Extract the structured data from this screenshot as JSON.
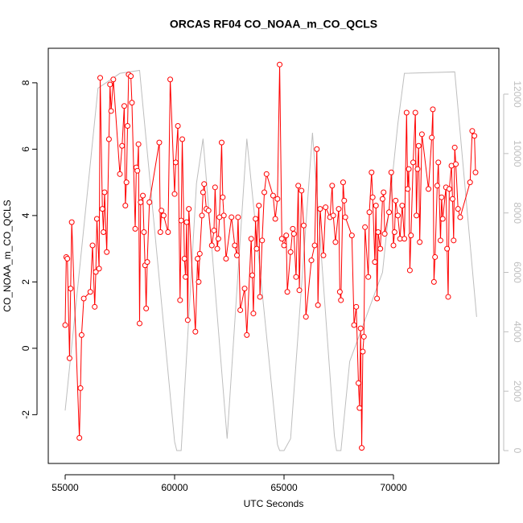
{
  "chart_data": {
    "type": "line",
    "title": "ORCAS RF04 CO_NOAA_m_CO_QCLS",
    "x_label": "UTC Seconds",
    "y_label": "CO_NOAA_m_CO_QCLS",
    "xlim": [
      54228,
      74816
    ],
    "ylim": [
      -3.47,
      9.04
    ],
    "y2lim": [
      -433,
      13544
    ],
    "xticks": [
      55000,
      60000,
      65000,
      70000
    ],
    "yticks": [
      -2,
      0,
      2,
      4,
      6,
      8
    ],
    "y2ticks": [
      0,
      2000,
      4000,
      6000,
      8000,
      10000,
      12000
    ],
    "series": [
      {
        "color": "#bebebe",
        "axis": "y2",
        "markers": false,
        "x": [
          55000,
          56500,
          57500,
          58400,
          60000,
          60100,
          60300,
          61000,
          61300,
          62400,
          63300,
          64700,
          64800,
          65000,
          65300,
          66300,
          67300,
          67400,
          67600,
          68000,
          69500,
          70200,
          70500,
          72800,
          73800
        ],
        "values": [
          1350,
          12200,
          12700,
          12800,
          300,
          0,
          0,
          9000,
          10500,
          400,
          10500,
          200,
          0,
          0,
          400,
          10700,
          500,
          0,
          0,
          3000,
          6000,
          11000,
          12700,
          12750,
          4500
        ]
      },
      {
        "color": "#ff0000",
        "markers": true,
        "x": [
          55000,
          55050,
          55100,
          55200,
          55250,
          55300,
          55650,
          55700,
          55750,
          55850,
          56150,
          56250,
          56350,
          56400,
          56450,
          56550,
          56600,
          56700,
          56750,
          56800,
          56900,
          57000,
          57050,
          57100,
          57200,
          57500,
          57600,
          57700,
          57750,
          57800,
          57850,
          57900,
          58000,
          58050,
          58200,
          58250,
          58300,
          58350,
          58400,
          58450,
          58550,
          58600,
          58650,
          58700,
          58750,
          58850,
          59300,
          59350,
          59400,
          59500,
          59700,
          59800,
          60000,
          60050,
          60150,
          60250,
          60300,
          60350,
          60450,
          60500,
          60550,
          60600,
          60650,
          60950,
          61050,
          61100,
          61150,
          61250,
          61300,
          61350,
          61450,
          61550,
          61700,
          61800,
          61850,
          61950,
          62000,
          62050,
          62150,
          62200,
          62250,
          62350,
          62600,
          62750,
          62850,
          62900,
          63000,
          63200,
          63300,
          63500,
          63550,
          63600,
          63700,
          63750,
          63850,
          63900,
          64000,
          64100,
          64200,
          64500,
          64600,
          64700,
          64800,
          64900,
          65000,
          65100,
          65150,
          65300,
          65400,
          65450,
          65550,
          65650,
          65700,
          65800,
          65900,
          66000,
          66250,
          66400,
          66500,
          66550,
          66650,
          66800,
          66900,
          67100,
          67200,
          67250,
          67350,
          67500,
          67550,
          67600,
          67700,
          67750,
          67800,
          68100,
          68200,
          68300,
          68400,
          68450,
          68500,
          68550,
          68600,
          68650,
          68700,
          68850,
          68900,
          69000,
          69050,
          69150,
          69200,
          69250,
          69300,
          69400,
          69500,
          69550,
          69600,
          69800,
          69900,
          70000,
          70050,
          70100,
          70200,
          70300,
          70400,
          70500,
          70600,
          70650,
          70700,
          70750,
          70800,
          70900,
          71000,
          71050,
          71100,
          71150,
          71200,
          71300,
          71600,
          71750,
          71800,
          71850,
          71900,
          72000,
          72050,
          72150,
          72200,
          72250,
          72400,
          72450,
          72500,
          72550,
          72650,
          72700,
          72750,
          72800,
          72850,
          72950,
          73050,
          73500,
          73600,
          73700,
          73750
        ],
        "values": [
          0.7,
          2.75,
          2.7,
          -0.3,
          1.8,
          3.8,
          -2.7,
          -1.2,
          0.4,
          1.5,
          1.7,
          3.1,
          1.25,
          2.3,
          3.9,
          2.4,
          8.15,
          4.2,
          3.5,
          4.7,
          2.9,
          6.3,
          7.95,
          7.15,
          8.1,
          5.25,
          6.1,
          7.3,
          4.3,
          5.0,
          6.7,
          8.25,
          8.2,
          7.4,
          3.6,
          5.45,
          5.35,
          6.15,
          0.75,
          4.4,
          4.6,
          3.5,
          2.5,
          1.2,
          2.6,
          4.4,
          6.2,
          3.5,
          4.15,
          4.0,
          3.5,
          8.1,
          4.65,
          5.6,
          6.7,
          1.45,
          3.85,
          6.3,
          2.7,
          2.15,
          3.8,
          0.85,
          4.2,
          0.5,
          2.7,
          2.0,
          2.85,
          4.0,
          4.7,
          4.95,
          4.2,
          4.15,
          3.1,
          3.55,
          4.85,
          3.0,
          3.3,
          3.95,
          6.2,
          4.55,
          4.0,
          2.7,
          3.95,
          3.1,
          2.8,
          3.95,
          1.15,
          1.8,
          0.4,
          3.3,
          2.2,
          1.05,
          3.9,
          3.0,
          4.3,
          1.55,
          3.25,
          4.7,
          5.25,
          4.6,
          3.9,
          4.5,
          8.55,
          3.3,
          3.1,
          3.4,
          1.7,
          2.9,
          3.6,
          3.45,
          2.15,
          4.9,
          1.75,
          4.75,
          3.7,
          0.95,
          2.65,
          3.1,
          6.0,
          1.3,
          4.2,
          2.8,
          4.25,
          3.95,
          4.9,
          4.0,
          3.2,
          4.2,
          1.7,
          1.45,
          5.0,
          4.45,
          3.95,
          3.4,
          0.7,
          1.25,
          -1.05,
          -1.8,
          0.6,
          -3.0,
          -0.1,
          0.35,
          3.65,
          2.15,
          4.1,
          5.3,
          4.55,
          2.6,
          4.3,
          1.5,
          3.5,
          3.0,
          4.5,
          4.7,
          3.45,
          4.1,
          5.3,
          3.1,
          3.5,
          4.45,
          4.0,
          3.3,
          4.3,
          3.3,
          7.1,
          4.8,
          5.4,
          2.35,
          3.4,
          5.6,
          7.1,
          4.0,
          5.4,
          6.1,
          3.2,
          6.45,
          4.8,
          6.35,
          7.2,
          2.0,
          2.75,
          4.9,
          5.6,
          3.25,
          4.55,
          3.9,
          4.85,
          3.0,
          1.55,
          4.8,
          5.5,
          4.5,
          3.25,
          6.05,
          5.55,
          4.2,
          3.95,
          5.0,
          6.55,
          6.4,
          5.3
        ]
      }
    ]
  }
}
